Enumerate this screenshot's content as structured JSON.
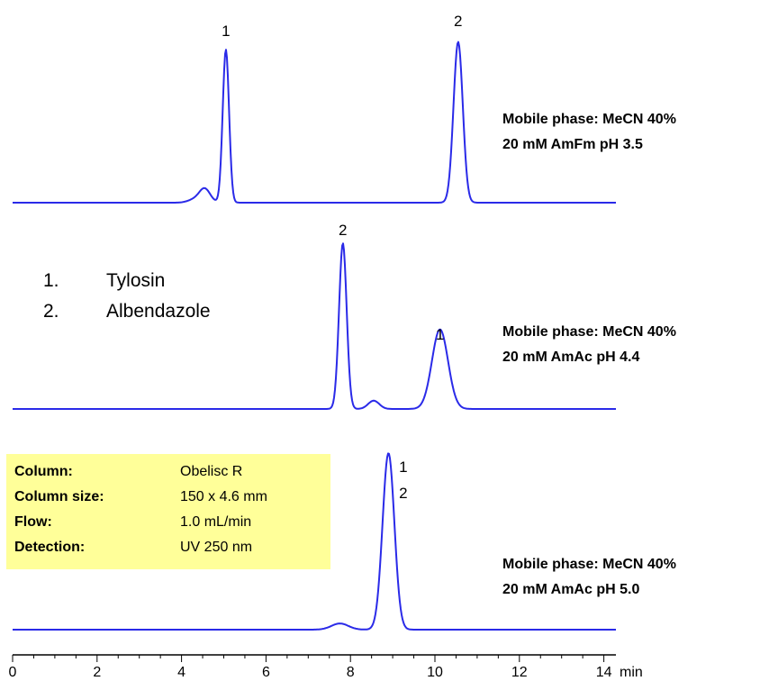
{
  "chart_data": {
    "type": "line",
    "title": "",
    "xlabel": "min",
    "ylabel": "",
    "xlim": [
      0,
      14.4
    ],
    "x_ticks": [
      "0",
      "2",
      "4",
      "6",
      "8",
      "10",
      "12",
      "14"
    ],
    "x_unit": "min",
    "grid": false,
    "series": [
      {
        "baseline": 0,
        "color": "#2a2ae8",
        "peaks": [
          {
            "rt": 4.55,
            "height": 0.09,
            "sigma": 0.13
          },
          {
            "rt": 4.3,
            "height": 0.02,
            "sigma": 0.15
          },
          {
            "rt": 5.05,
            "height": 1.0,
            "sigma": 0.075
          },
          {
            "rt": 10.55,
            "height": 1.05,
            "sigma": 0.11
          }
        ],
        "peak_labels": [
          {
            "text": "1",
            "rt": 5.05
          },
          {
            "text": "2",
            "rt": 10.55
          }
        ],
        "conditions": [
          "Mobile phase: MeCN  40%",
          "20 mM AmFm pH 3.5"
        ]
      },
      {
        "baseline": 0,
        "color": "#2a2ae8",
        "peaks": [
          {
            "rt": 7.82,
            "height": 1.0,
            "sigma": 0.09
          },
          {
            "rt": 8.55,
            "height": 0.05,
            "sigma": 0.13
          },
          {
            "rt": 10.12,
            "height": 0.48,
            "sigma": 0.19
          }
        ],
        "peak_labels": [
          {
            "text": "2",
            "rt": 7.82
          },
          {
            "text": "1",
            "rt": 10.12
          }
        ],
        "conditions": [
          "Mobile phase: MeCN  40%",
          "20 mM AmAc pH 4.4"
        ]
      },
      {
        "baseline": 0,
        "color": "#2a2ae8",
        "peaks": [
          {
            "rt": 7.75,
            "height": 0.035,
            "sigma": 0.2
          },
          {
            "rt": 8.9,
            "height": 1.0,
            "sigma": 0.14
          }
        ],
        "peak_labels": [
          {
            "text": "1",
            "rt": 9.25
          },
          {
            "text": "2",
            "rt": 9.25
          }
        ],
        "conditions": [
          "Mobile phase: MeCN  40%",
          "20 mM AmAc pH 5.0"
        ]
      }
    ]
  },
  "legend": {
    "items": [
      {
        "num": "1.",
        "name": "Tylosin"
      },
      {
        "num": "2.",
        "name": "Albendazole"
      }
    ]
  },
  "info_box": {
    "background": "#ffff99",
    "rows": [
      {
        "key": "Column:",
        "value": "Obelisc R"
      },
      {
        "key": "Column size:",
        "value": "150 x 4.6 mm"
      },
      {
        "key": "Flow:",
        "value": "1.0 mL/min"
      },
      {
        "key": "Detection:",
        "value": " UV 250 nm"
      }
    ]
  }
}
